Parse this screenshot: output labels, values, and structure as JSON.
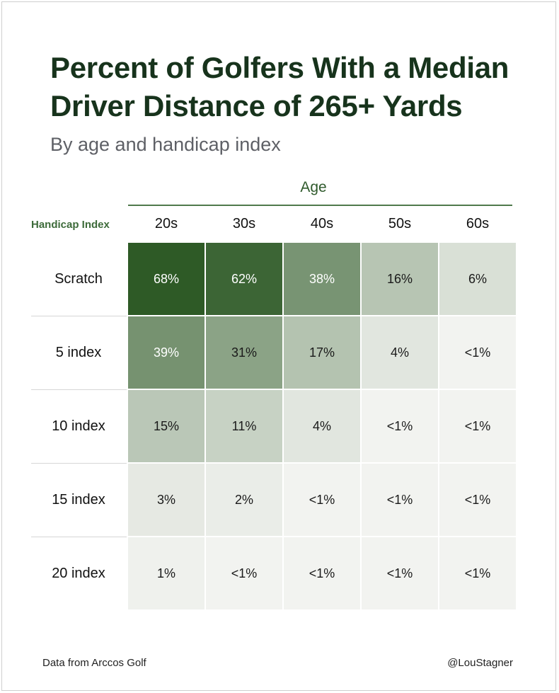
{
  "title": "Percent of Golfers With a Median Driver Distance of 265+ Yards",
  "subtitle": "By age and handicap index",
  "footer": {
    "source": "Data from Arccos Golf",
    "handle": "@LouStagner"
  },
  "colors": {
    "title": "#17331c",
    "accent": "#4f7a4c",
    "scale_low": "#f6f6f4",
    "scale_high": "#2e5a26"
  },
  "chart_data": {
    "type": "heatmap",
    "title": "Percent of Golfers With a Median Driver Distance of 265+ Yards",
    "subtitle": "By age and handicap index",
    "column_group_label": "Age",
    "row_group_label": "Handicap Index",
    "columns": [
      "20s",
      "30s",
      "40s",
      "50s",
      "60s"
    ],
    "rows": [
      "Scratch",
      "5 index",
      "10 index",
      "15 index",
      "20 index"
    ],
    "labels": [
      [
        "68%",
        "62%",
        "38%",
        "16%",
        "6%"
      ],
      [
        "39%",
        "31%",
        "17%",
        "4%",
        "<1%"
      ],
      [
        "15%",
        "11%",
        "4%",
        "<1%",
        "<1%"
      ],
      [
        "3%",
        "2%",
        "<1%",
        "<1%",
        "<1%"
      ],
      [
        "1%",
        "<1%",
        "<1%",
        "<1%",
        "<1%"
      ]
    ],
    "values": [
      [
        68,
        62,
        38,
        16,
        6
      ],
      [
        39,
        31,
        17,
        4,
        0.5
      ],
      [
        15,
        11,
        4,
        0.5,
        0.5
      ],
      [
        3,
        2,
        0.5,
        0.5,
        0.5
      ],
      [
        1,
        0.5,
        0.5,
        0.5,
        0.5
      ]
    ],
    "unit": "%"
  }
}
